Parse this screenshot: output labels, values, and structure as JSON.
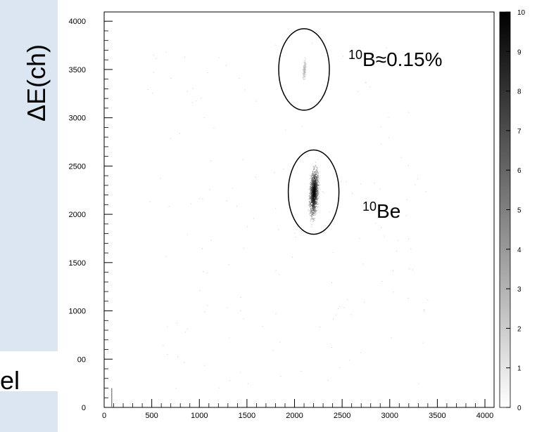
{
  "colors": {
    "slide_panel": "#dce6f2",
    "frame": "#000000",
    "background": "#ffffff"
  },
  "slide": {
    "cut_text": "el"
  },
  "chart_data": {
    "type": "heatmap",
    "title": "",
    "xlabel": "",
    "ylabel": "ΔE(ch)",
    "xlim": [
      0,
      4096
    ],
    "ylim": [
      0,
      4096
    ],
    "x_ticks": [
      "0",
      "500",
      "1000",
      "1500",
      "2000",
      "2500",
      "3000",
      "3500",
      "4000"
    ],
    "y_ticks": [
      "0",
      "00",
      "1000",
      "1500",
      "2000",
      "2500",
      "3000",
      "3500",
      "4000"
    ],
    "colorbar": {
      "min": 0,
      "max": 10,
      "ticks": [
        "0",
        "1",
        "2",
        "3",
        "4",
        "5",
        "6",
        "7",
        "8",
        "9",
        "10"
      ]
    },
    "grid": false,
    "clusters": [
      {
        "isotope_mass": "10",
        "element": "Be",
        "center": [
          2200,
          2230
        ],
        "spread": [
          30,
          170
        ],
        "max_counts": 10,
        "label": {
          "sup": "10",
          "text": "Be"
        }
      },
      {
        "isotope_mass": "10",
        "element": "B",
        "center": [
          2100,
          3500
        ],
        "spread": [
          12,
          80
        ],
        "max_counts": 3,
        "label": {
          "sup": "10",
          "text": "B≈0.15%"
        }
      }
    ],
    "low_channel_streak": {
      "x": 80,
      "y_range": [
        0,
        200
      ]
    }
  }
}
